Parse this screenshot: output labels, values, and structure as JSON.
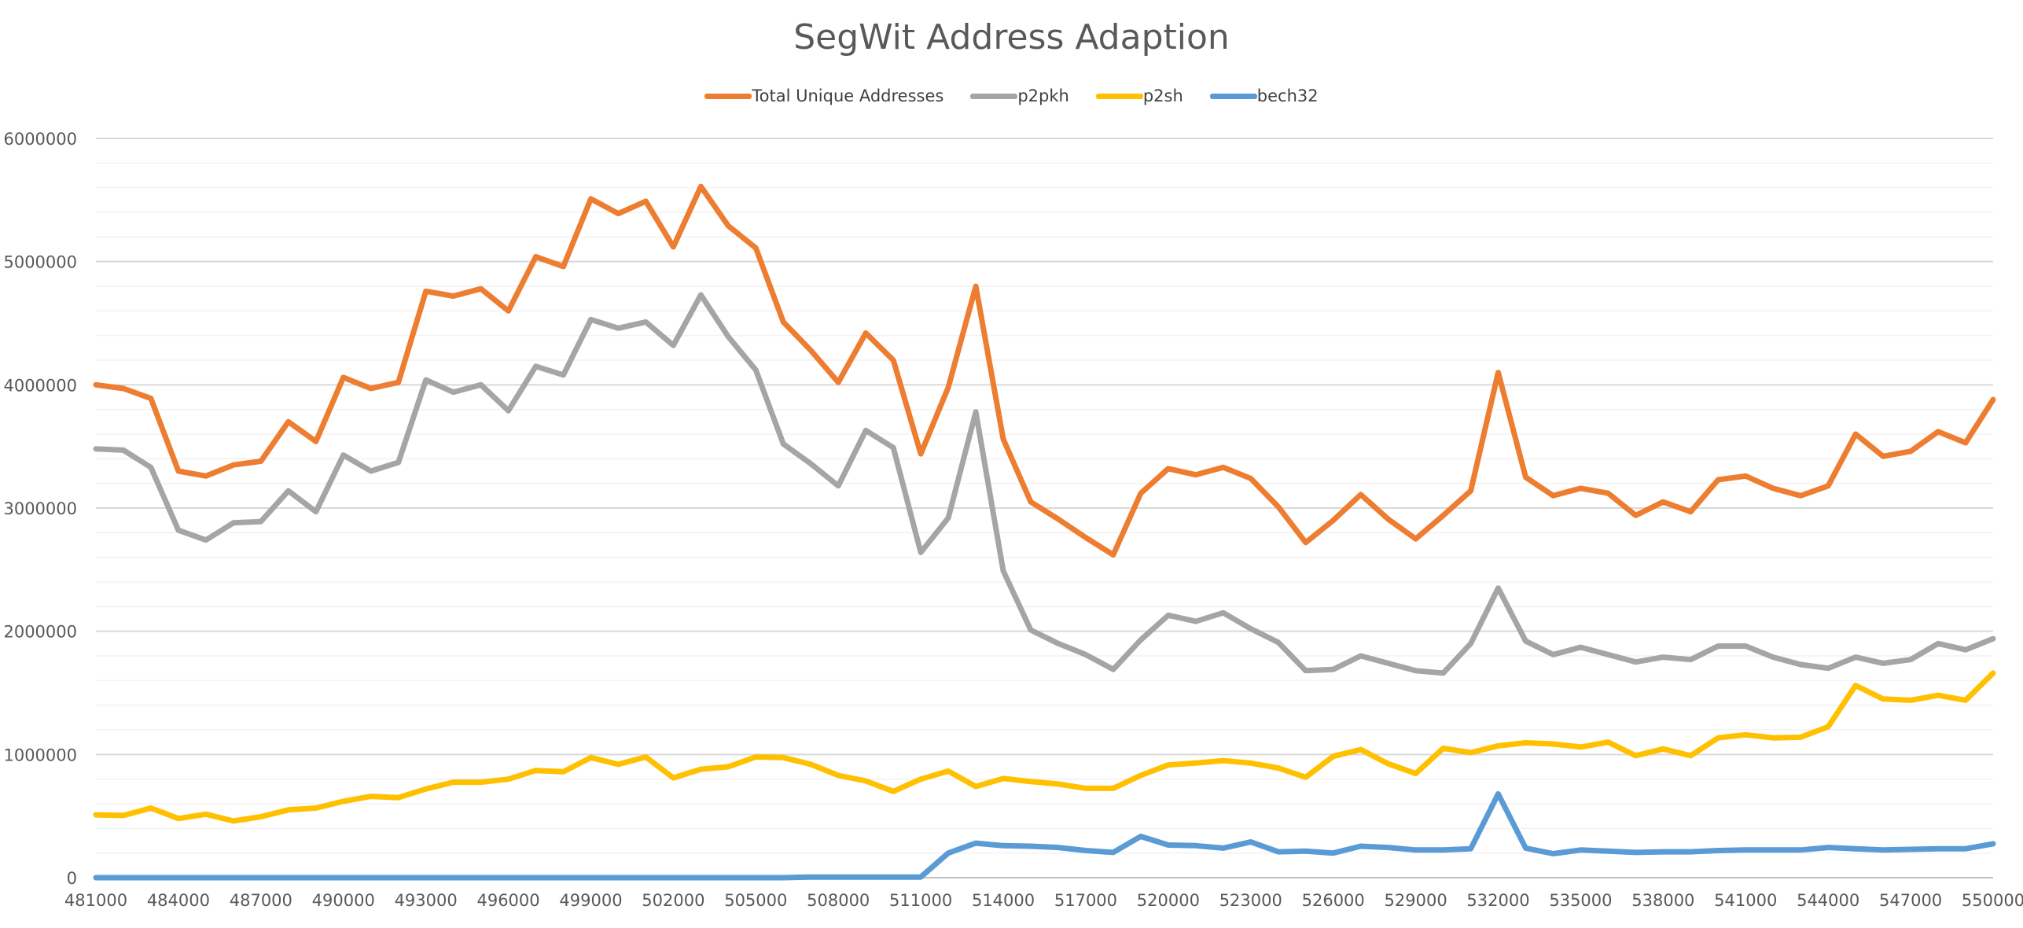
{
  "chart_data": {
    "type": "line",
    "title": "SegWit Address Adaption",
    "xlabel": "",
    "ylabel": "",
    "ylim": [
      0,
      6000000
    ],
    "y_ticks": [
      "0",
      "1000000",
      "2000000",
      "3000000",
      "4000000",
      "5000000",
      "6000000"
    ],
    "y_tick_values": [
      0,
      1000000,
      2000000,
      3000000,
      4000000,
      5000000,
      6000000
    ],
    "minor_grid_step": 200000,
    "x_start": 481000,
    "x_step": 1000,
    "x_tick_labels": [
      "481000",
      "484000",
      "487000",
      "490000",
      "493000",
      "496000",
      "499000",
      "502000",
      "505000",
      "508000",
      "511000",
      "514000",
      "517000",
      "520000",
      "523000",
      "526000",
      "529000",
      "532000",
      "535000",
      "538000",
      "541000",
      "544000",
      "547000",
      "550000"
    ],
    "legend_position": "top",
    "grid": true,
    "series": [
      {
        "name": "Total Unique Addresses",
        "color": "#ED7D31",
        "values": [
          4000000,
          3970000,
          3890000,
          3300000,
          3260000,
          3350000,
          3380000,
          3700000,
          3540000,
          4060000,
          3970000,
          4020000,
          4760000,
          4720000,
          4780000,
          4600000,
          5040000,
          4960000,
          5510000,
          5390000,
          5490000,
          5120000,
          5610000,
          5290000,
          5110000,
          4510000,
          4280000,
          4020000,
          4420000,
          4200000,
          3440000,
          3980000,
          4800000,
          3560000,
          3050000,
          2910000,
          2760000,
          2620000,
          3120000,
          3320000,
          3270000,
          3330000,
          3240000,
          3010000,
          2720000,
          2900000,
          3110000,
          2910000,
          2750000,
          2940000,
          3140000,
          4100000,
          3250000,
          3100000,
          3160000,
          3120000,
          2940000,
          3050000,
          2970000,
          3230000,
          3260000,
          3160000,
          3100000,
          3180000,
          3600000,
          3420000,
          3460000,
          3620000,
          3530000,
          3880000
        ]
      },
      {
        "name": "p2pkh",
        "color": "#A5A5A5",
        "values": [
          3480000,
          3470000,
          3330000,
          2820000,
          2740000,
          2880000,
          2890000,
          3140000,
          2970000,
          3430000,
          3300000,
          3370000,
          4040000,
          3940000,
          4000000,
          3790000,
          4150000,
          4080000,
          4530000,
          4460000,
          4510000,
          4320000,
          4730000,
          4390000,
          4120000,
          3520000,
          3360000,
          3180000,
          3630000,
          3490000,
          2640000,
          2920000,
          3780000,
          2490000,
          2010000,
          1900000,
          1810000,
          1690000,
          1930000,
          2130000,
          2080000,
          2150000,
          2020000,
          1910000,
          1680000,
          1690000,
          1800000,
          1740000,
          1680000,
          1660000,
          1900000,
          2350000,
          1920000,
          1810000,
          1870000,
          1810000,
          1750000,
          1790000,
          1770000,
          1880000,
          1880000,
          1790000,
          1730000,
          1700000,
          1790000,
          1740000,
          1770000,
          1900000,
          1850000,
          1940000
        ]
      },
      {
        "name": "p2sh",
        "color": "#FFC000",
        "values": [
          510000,
          505000,
          565000,
          480000,
          515000,
          460000,
          495000,
          550000,
          565000,
          620000,
          660000,
          650000,
          720000,
          775000,
          775000,
          800000,
          870000,
          860000,
          975000,
          920000,
          980000,
          810000,
          880000,
          900000,
          980000,
          975000,
          920000,
          830000,
          785000,
          700000,
          800000,
          865000,
          740000,
          805000,
          780000,
          760000,
          725000,
          725000,
          830000,
          915000,
          930000,
          950000,
          930000,
          890000,
          815000,
          985000,
          1040000,
          925000,
          845000,
          1050000,
          1015000,
          1070000,
          1095000,
          1085000,
          1060000,
          1100000,
          990000,
          1045000,
          990000,
          1135000,
          1160000,
          1135000,
          1140000,
          1225000,
          1560000,
          1450000,
          1440000,
          1480000,
          1440000,
          1660000
        ]
      },
      {
        "name": "bech32",
        "color": "#5B9BD5",
        "values": [
          0,
          0,
          0,
          0,
          0,
          0,
          0,
          0,
          0,
          0,
          0,
          0,
          0,
          0,
          0,
          0,
          0,
          0,
          0,
          0,
          0,
          0,
          0,
          0,
          0,
          0,
          5000,
          5000,
          5000,
          5000,
          5000,
          200000,
          280000,
          260000,
          255000,
          245000,
          220000,
          205000,
          335000,
          265000,
          260000,
          240000,
          290000,
          210000,
          215000,
          200000,
          255000,
          245000,
          225000,
          225000,
          235000,
          680000,
          240000,
          195000,
          225000,
          215000,
          205000,
          210000,
          210000,
          220000,
          225000,
          225000,
          225000,
          245000,
          235000,
          225000,
          230000,
          235000,
          235000,
          275000
        ]
      }
    ]
  }
}
